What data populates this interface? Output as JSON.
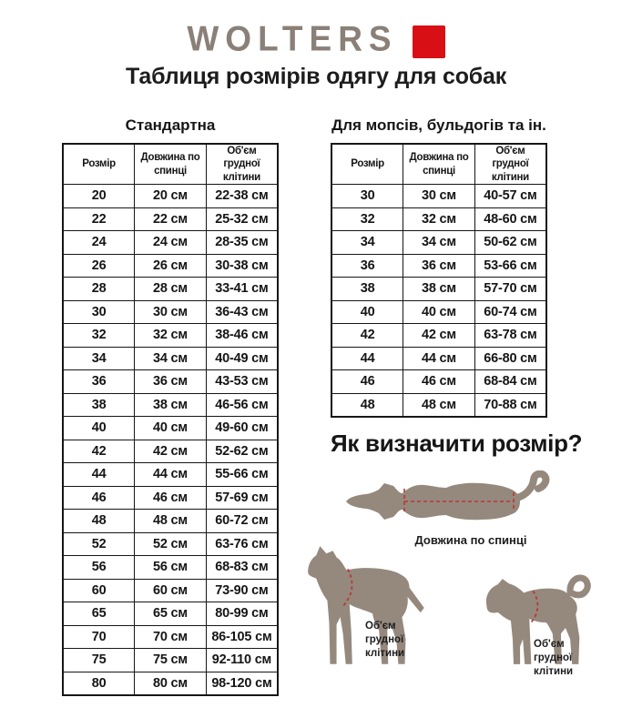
{
  "logo": {
    "text": "WOLTERS"
  },
  "page_title": "Таблиця розмірів одягу для собак",
  "tables": [
    {
      "subtitle": "Стандартна",
      "headers": [
        "Розмір",
        "Довжина по\nспинці",
        "Об'єм грудної\nклітини"
      ],
      "rows": [
        [
          "20",
          "20 см",
          "22-38 см"
        ],
        [
          "22",
          "22 см",
          "25-32 см"
        ],
        [
          "24",
          "24 см",
          "28-35 см"
        ],
        [
          "26",
          "26 см",
          "30-38 см"
        ],
        [
          "28",
          "28 см",
          "33-41 см"
        ],
        [
          "30",
          "30 см",
          "36-43 см"
        ],
        [
          "32",
          "32 см",
          "38-46 см"
        ],
        [
          "34",
          "34 см",
          "40-49 см"
        ],
        [
          "36",
          "36 см",
          "43-53 см"
        ],
        [
          "38",
          "38 см",
          "46-56 см"
        ],
        [
          "40",
          "40 см",
          "49-60 см"
        ],
        [
          "42",
          "42 см",
          "52-62 см"
        ],
        [
          "44",
          "44 см",
          "55-66 см"
        ],
        [
          "46",
          "46 см",
          "57-69 см"
        ],
        [
          "48",
          "48 см",
          "60-72 см"
        ],
        [
          "52",
          "52 см",
          "63-76 см"
        ],
        [
          "56",
          "56 см",
          "68-83 см"
        ],
        [
          "60",
          "60 см",
          "73-90 см"
        ],
        [
          "65",
          "65 см",
          "80-99 см"
        ],
        [
          "70",
          "70 см",
          "86-105 см"
        ],
        [
          "75",
          "75 см",
          "92-110 см"
        ],
        [
          "80",
          "80 см",
          "98-120 см"
        ]
      ]
    },
    {
      "subtitle": "Для мопсів, бульдогів та ін.",
      "headers": [
        "Розмір",
        "Довжина по\nспинці",
        "Об'єм грудної\nклітини"
      ],
      "rows": [
        [
          "30",
          "30 см",
          "40-57 см"
        ],
        [
          "32",
          "32 см",
          "48-60 см"
        ],
        [
          "34",
          "34 см",
          "50-62 см"
        ],
        [
          "36",
          "36 см",
          "53-66 см"
        ],
        [
          "38",
          "38 см",
          "57-70 см"
        ],
        [
          "40",
          "40 см",
          "60-74 см"
        ],
        [
          "42",
          "42 см",
          "63-78 см"
        ],
        [
          "44",
          "44 см",
          "66-80 см"
        ],
        [
          "46",
          "46 см",
          "68-84 см"
        ],
        [
          "48",
          "48 см",
          "70-88 см"
        ]
      ]
    }
  ],
  "guide": {
    "heading": "Як визначити розмір?",
    "back_length_label": "Довжина по спинці",
    "chest_label_lines": [
      "Об'єм",
      "грудної",
      "клітини"
    ]
  },
  "colors": {
    "silhouette": "#95897e",
    "measure_line": "#bf3330",
    "logo_red": "#d90f16",
    "logo_gray": "#8a8078",
    "text": "#1c1c1c"
  }
}
